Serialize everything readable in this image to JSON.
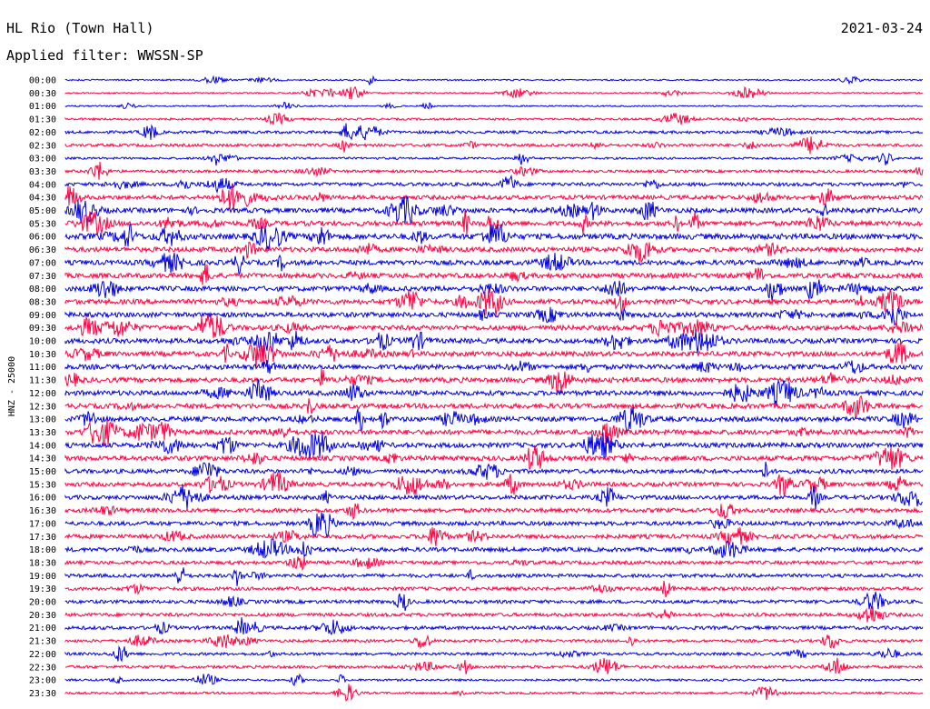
{
  "header": {
    "station": "HL Rio (Town Hall)",
    "date": "2021-03-24",
    "filter": "Applied filter: WWSSN-SP"
  },
  "chart_data": {
    "type": "line",
    "title": "HL Rio (Town Hall)",
    "subtitle": "Applied filter: WWSSN-SP",
    "ylabel": "HNZ - 25000",
    "xlabel": "",
    "grid": false,
    "rows": [
      "00:00",
      "00:30",
      "01:00",
      "01:30",
      "02:00",
      "02:30",
      "03:00",
      "03:30",
      "04:00",
      "04:30",
      "05:00",
      "05:30",
      "06:00",
      "06:30",
      "07:00",
      "07:30",
      "08:00",
      "08:30",
      "09:00",
      "09:30",
      "10:00",
      "10:30",
      "11:00",
      "11:30",
      "12:00",
      "12:30",
      "13:00",
      "13:30",
      "14:00",
      "14:30",
      "15:00",
      "15:30",
      "16:00",
      "16:30",
      "17:00",
      "17:30",
      "18:00",
      "18:30",
      "19:00",
      "19:30",
      "20:00",
      "20:30",
      "21:00",
      "21:30",
      "22:00",
      "22:30",
      "23:00",
      "23:30"
    ],
    "noise_level": [
      1,
      1,
      1,
      2,
      3,
      3,
      2,
      3,
      4,
      5,
      6,
      6,
      7,
      6,
      6,
      6,
      6,
      6,
      6,
      6,
      6,
      6,
      6,
      6,
      6,
      6,
      6,
      6,
      6,
      6,
      5,
      5,
      5,
      5,
      5,
      5,
      5,
      4,
      4,
      4,
      4,
      4,
      4,
      3,
      3,
      3,
      2,
      2
    ],
    "series": [
      {
        "color": "#0000e0"
      },
      {
        "color": "#ff0040"
      }
    ]
  }
}
